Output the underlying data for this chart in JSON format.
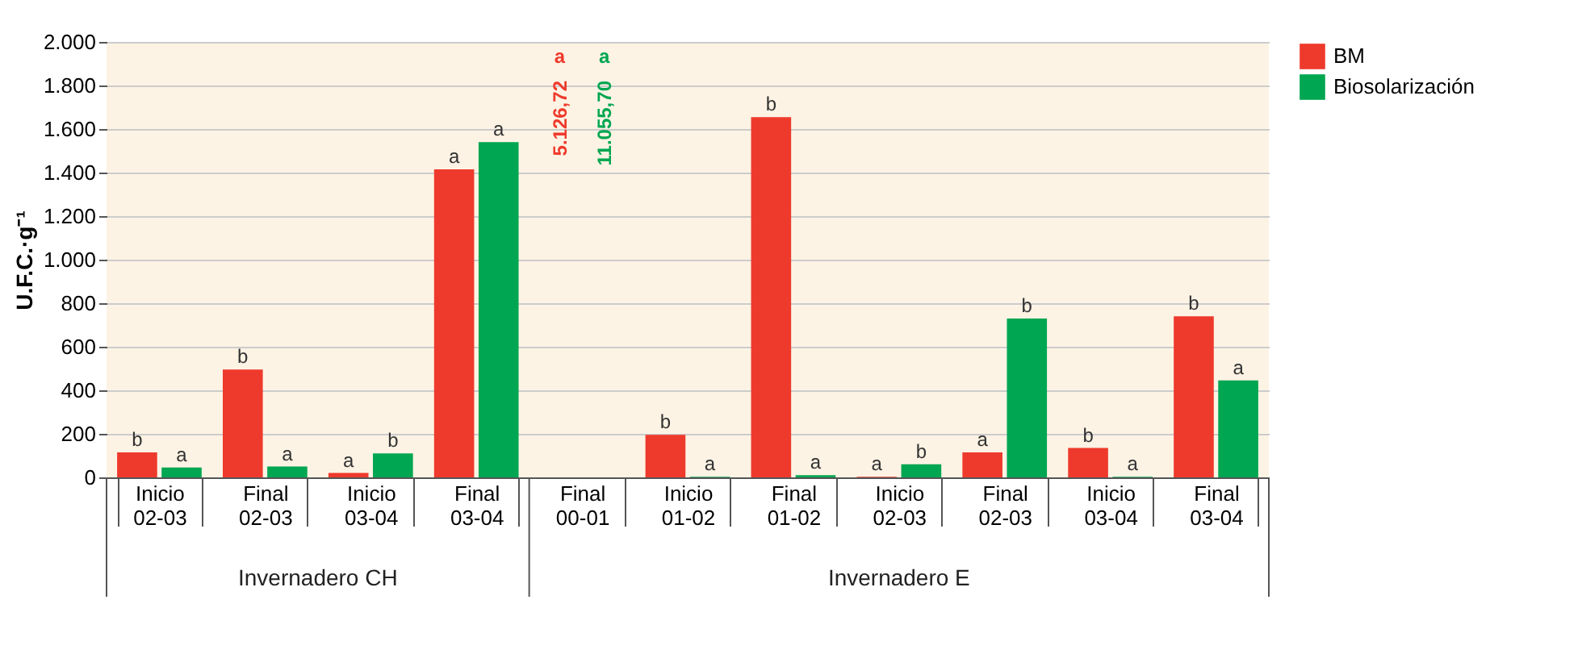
{
  "chart_data": {
    "type": "bar",
    "categories": [
      "Inicio 02-03",
      "Final 02-03",
      "Inicio 03-04",
      "Final 03-04",
      "Final 00-01",
      "Inicio 01-02",
      "Final 01-02",
      "Inicio 02-03",
      "Final 02-03",
      "Inicio 03-04",
      "Final 03-04"
    ],
    "ylabel": "U.F.C.·g⁻¹",
    "series": [
      {
        "name": "BM",
        "color": "#ee3a2c",
        "values": [
          115,
          495,
          20,
          1415,
          null,
          195,
          1655,
          3,
          115,
          135,
          740
        ],
        "value_labels": [
          "b",
          "b",
          "a",
          "a",
          null,
          "b",
          "b",
          "a",
          "a",
          "b",
          "b"
        ]
      },
      {
        "name": "Biosolarización",
        "color": "#00a651",
        "values": [
          45,
          50,
          110,
          1540,
          null,
          3,
          10,
          60,
          730,
          3,
          445
        ],
        "value_labels": [
          "a",
          "a",
          "b",
          "a",
          null,
          "a",
          "a",
          "b",
          "b",
          "a",
          "a"
        ]
      }
    ],
    "annotations": [
      "a",
      "5.126,72",
      "a",
      "11.055,70",
      "Invernadero CH",
      "Invernadero E"
    ],
    "ylim": [
      0,
      2000
    ],
    "yticks": [
      {
        "value": 0,
        "label": "0"
      },
      {
        "value": 200,
        "label": "200"
      },
      {
        "value": 400,
        "label": "400"
      },
      {
        "value": 600,
        "label": "600"
      },
      {
        "value": 800,
        "label": "800"
      },
      {
        "value": 1000,
        "label": "1.000"
      },
      {
        "value": 1200,
        "label": "1.200"
      },
      {
        "value": 1400,
        "label": "1.400"
      },
      {
        "value": 1600,
        "label": "1.600"
      },
      {
        "value": 1800,
        "label": "1.800"
      },
      {
        "value": 2000,
        "label": "2.000"
      }
    ],
    "grid": "y",
    "legend": "right"
  }
}
